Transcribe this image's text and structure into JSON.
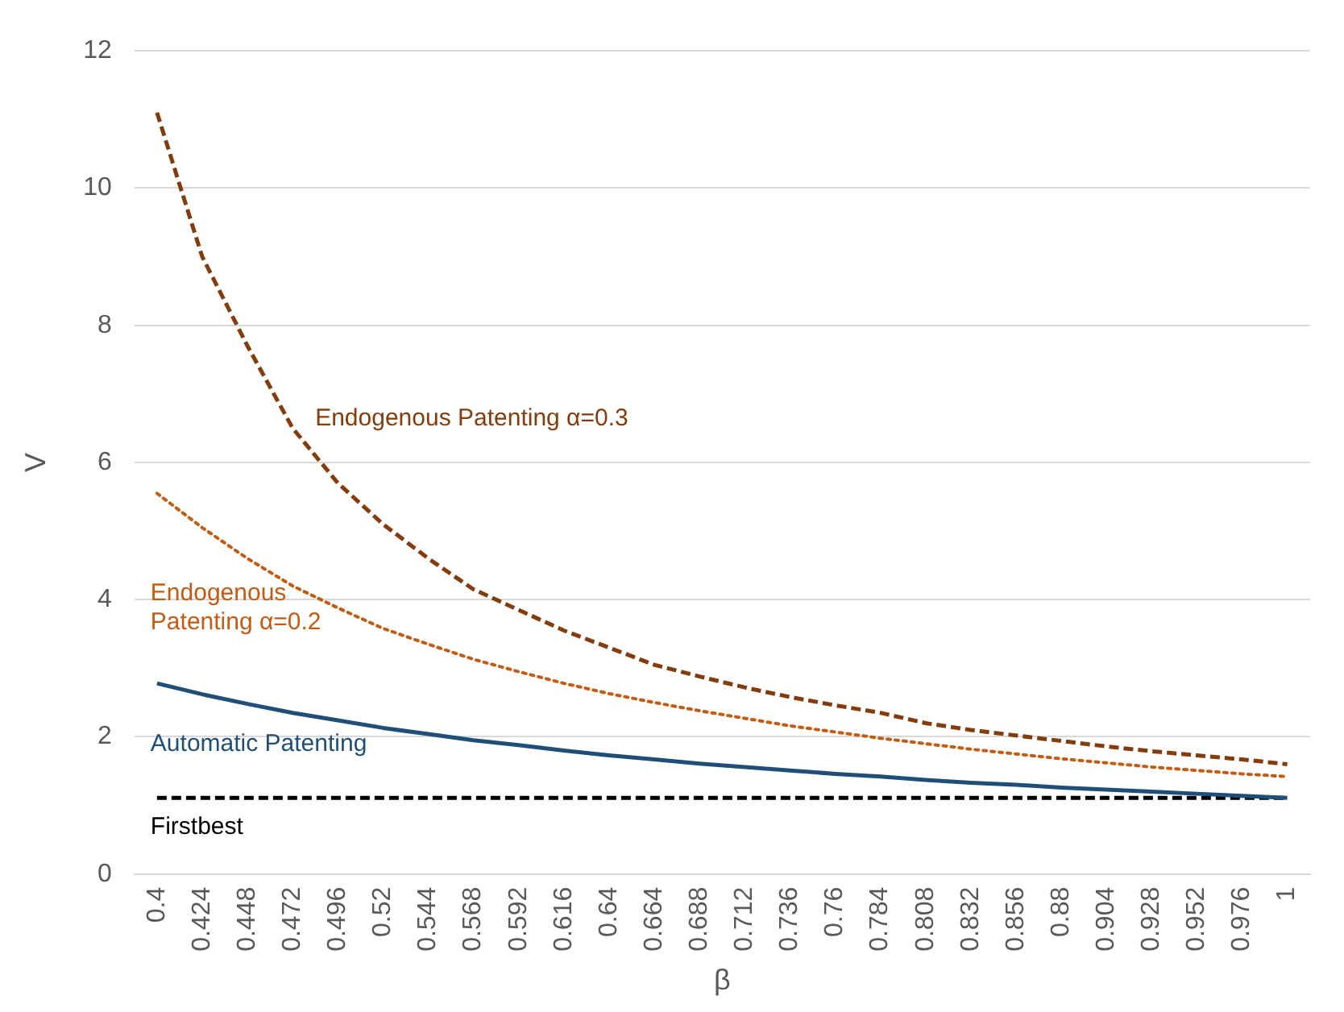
{
  "chart_data": {
    "type": "line",
    "xlabel": "β",
    "ylabel": "V",
    "categories": [
      "0.4",
      "0.424",
      "0.448",
      "0.472",
      "0.496",
      "0.52",
      "0.544",
      "0.568",
      "0.592",
      "0.616",
      "0.64",
      "0.664",
      "0.688",
      "0.712",
      "0.736",
      "0.76",
      "0.784",
      "0.808",
      "0.832",
      "0.856",
      "0.88",
      "0.904",
      "0.928",
      "0.952",
      "0.976",
      "1"
    ],
    "ylim": [
      0,
      12
    ],
    "yticks": [
      0,
      2,
      4,
      6,
      8,
      10,
      12
    ],
    "grid": "y",
    "legend": false,
    "marker": "none",
    "series": [
      {
        "name": "Endogenous Patenting α=0.3",
        "color": "#843c0c",
        "line_style": "dashed",
        "values": [
          11.1,
          9.0,
          7.7,
          6.5,
          5.7,
          5.1,
          4.6,
          4.15,
          3.85,
          3.55,
          3.3,
          3.05,
          2.88,
          2.72,
          2.58,
          2.46,
          2.35,
          2.2,
          2.1,
          2.02,
          1.94,
          1.86,
          1.79,
          1.73,
          1.67,
          1.6
        ]
      },
      {
        "name": "Endogenous Patenting α=0.2",
        "color": "#c55a11",
        "line_style": "dotted",
        "values": [
          5.55,
          5.05,
          4.6,
          4.2,
          3.88,
          3.58,
          3.35,
          3.13,
          2.95,
          2.78,
          2.63,
          2.5,
          2.38,
          2.27,
          2.16,
          2.07,
          1.98,
          1.9,
          1.82,
          1.75,
          1.68,
          1.62,
          1.56,
          1.51,
          1.46,
          1.42
        ]
      },
      {
        "name": "Automatic Patenting",
        "color": "#1f4e79",
        "line_style": "solid",
        "values": [
          2.78,
          2.62,
          2.48,
          2.35,
          2.24,
          2.13,
          2.04,
          1.95,
          1.88,
          1.8,
          1.73,
          1.67,
          1.61,
          1.56,
          1.51,
          1.46,
          1.42,
          1.37,
          1.33,
          1.3,
          1.26,
          1.23,
          1.2,
          1.17,
          1.14,
          1.11
        ]
      },
      {
        "name": "Firstbest",
        "color": "#000000",
        "line_style": "dashed",
        "values": [
          1.11,
          1.11,
          1.11,
          1.11,
          1.11,
          1.11,
          1.11,
          1.11,
          1.11,
          1.11,
          1.11,
          1.11,
          1.11,
          1.11,
          1.11,
          1.11,
          1.11,
          1.11,
          1.11,
          1.11,
          1.11,
          1.11,
          1.11,
          1.11,
          1.11,
          1.11
        ]
      }
    ]
  }
}
